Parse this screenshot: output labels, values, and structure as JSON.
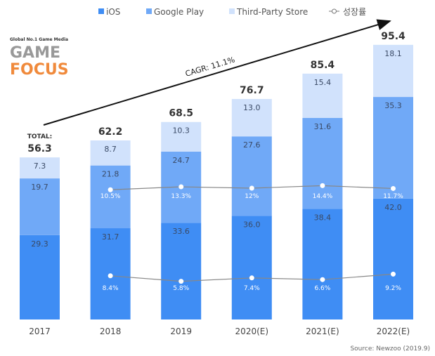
{
  "chart_data": {
    "type": "bar",
    "stacked": true,
    "categories": [
      "2017",
      "2018",
      "2019",
      "2020(E)",
      "2021(E)",
      "2022(E)"
    ],
    "series": [
      {
        "name": "iOS",
        "values": [
          29.3,
          31.7,
          33.6,
          36.0,
          38.4,
          42.0
        ],
        "color": "#3f8df4"
      },
      {
        "name": "Google Play",
        "values": [
          19.7,
          21.8,
          24.7,
          27.6,
          31.6,
          35.3
        ],
        "color": "#70a9f7"
      },
      {
        "name": "Third-Party Store",
        "values": [
          7.3,
          8.7,
          10.3,
          13.0,
          15.4,
          18.1
        ],
        "color": "#d1e2fc"
      }
    ],
    "totals": [
      "56.3",
      "62.2",
      "68.5",
      "76.7",
      "85.4",
      "95.4"
    ],
    "total_prefix": "TOTAL:",
    "growth_legend": "성장률",
    "growth_lines": [
      {
        "name": "Google Play growth",
        "values": [
          null,
          10.5,
          13.3,
          12,
          14.4,
          11.7
        ],
        "labels": [
          "",
          "10.5%",
          "13.3%",
          "12%",
          "14.4%",
          "11.7%"
        ]
      },
      {
        "name": "iOS growth",
        "values": [
          null,
          8.4,
          5.8,
          7.4,
          6.6,
          9.2
        ],
        "labels": [
          "",
          "8.4%",
          "5.8%",
          "7.4%",
          "6.6%",
          "9.2%"
        ]
      }
    ],
    "annotation": "CAGR: 11.1%",
    "source": "Source: Newzoo (2019.9)",
    "watermark": {
      "tagline": "Global No.1 Game Media",
      "line1": "GAME",
      "line2": "FOCUS"
    }
  }
}
